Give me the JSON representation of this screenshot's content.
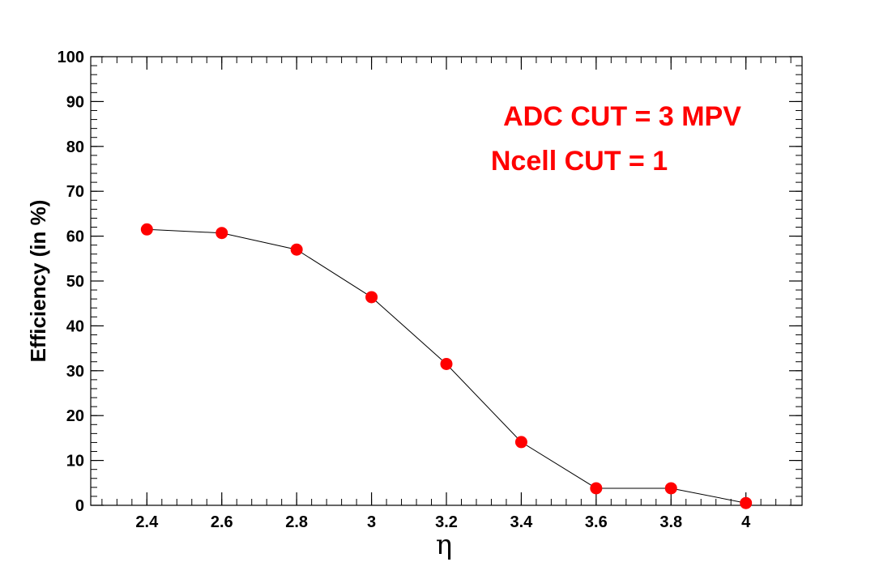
{
  "chart_data": {
    "type": "line",
    "title": "",
    "xlabel": "η",
    "ylabel": "Efficiency (in %)",
    "xlim": [
      2.25,
      4.15
    ],
    "ylim": [
      0,
      100
    ],
    "x_ticks": [
      "2.4",
      "2.6",
      "2.8",
      "3",
      "3.2",
      "3.4",
      "3.6",
      "3.8",
      "4"
    ],
    "y_ticks": [
      "0",
      "10",
      "20",
      "30",
      "40",
      "50",
      "60",
      "70",
      "80",
      "90",
      "100"
    ],
    "grid": false,
    "series": [
      {
        "x": [
          2.4,
          2.6,
          2.8,
          3.0,
          3.2,
          3.4,
          3.6,
          3.8,
          4.0
        ],
        "y": [
          61.5,
          60.7,
          57.0,
          46.4,
          31.5,
          14.1,
          3.8,
          3.8,
          0.5
        ],
        "marker_color": "#ff0000",
        "line_color": "#000000"
      }
    ],
    "annotations": [
      {
        "text": "ADC CUT = 3 MPV",
        "color": "#ff0000"
      },
      {
        "text": "Ncell CUT = 1",
        "color": "#ff0000"
      }
    ]
  }
}
